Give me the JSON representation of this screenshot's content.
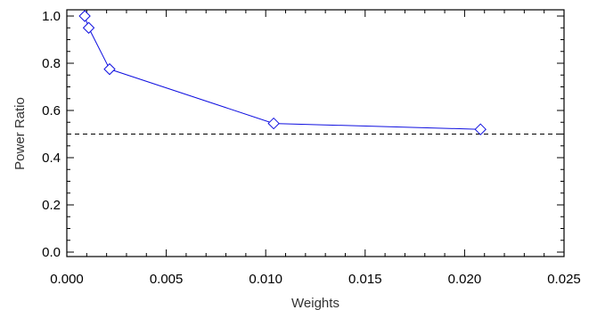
{
  "chart_data": {
    "type": "line",
    "xlabel": "Weights",
    "ylabel": "Power Ratio",
    "xlim": [
      0.0,
      0.025
    ],
    "ylim": [
      0.0,
      1.0
    ],
    "x_ticks": [
      "0.000",
      "0.005",
      "0.010",
      "0.015",
      "0.020",
      "0.025"
    ],
    "y_ticks": [
      "0.0",
      "0.2",
      "0.4",
      "0.6",
      "0.8",
      "1.0"
    ],
    "series": [
      {
        "marker": "diamond",
        "color": "#1010e0",
        "x": [
          0.0009,
          0.0011,
          0.00215,
          0.0104,
          0.0208
        ],
        "y": [
          1.0,
          0.95,
          0.775,
          0.545,
          0.52
        ]
      }
    ],
    "reference_line": {
      "y": 0.5,
      "style": "dashed",
      "color": "#000000"
    },
    "grid": false,
    "legend": false
  }
}
